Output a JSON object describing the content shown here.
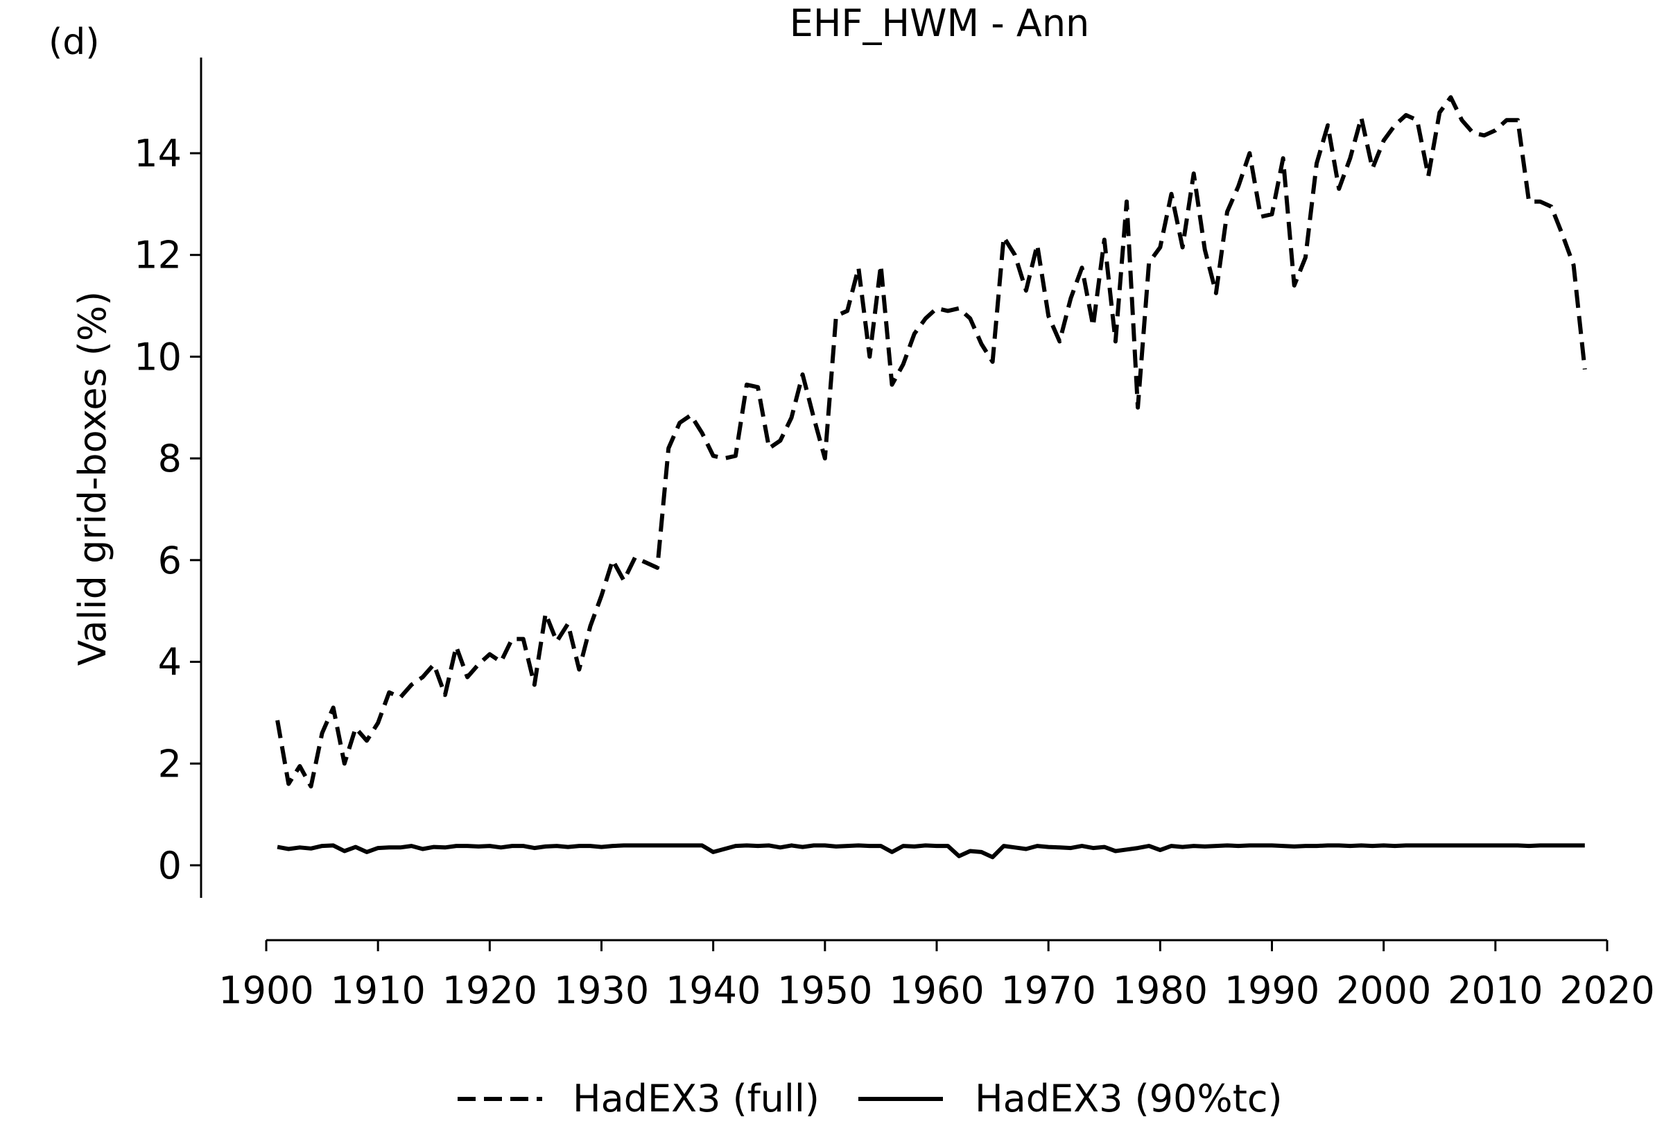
{
  "chart_data": {
    "type": "line",
    "panel_label": "(d)",
    "title": "EHF_HWM - Ann",
    "xlabel": "",
    "ylabel": "Valid grid-boxes (%)",
    "xlim": [
      1900,
      2020
    ],
    "ylim": [
      -0.6,
      15.8
    ],
    "xticks": [
      1900,
      1910,
      1920,
      1930,
      1940,
      1950,
      1960,
      1970,
      1980,
      1990,
      2000,
      2010,
      2020
    ],
    "yticks": [
      0,
      2,
      4,
      6,
      8,
      10,
      12,
      14
    ],
    "grid": false,
    "legend_position": "bottom-center",
    "x": [
      1901,
      1902,
      1903,
      1904,
      1905,
      1906,
      1907,
      1908,
      1909,
      1910,
      1911,
      1912,
      1913,
      1914,
      1915,
      1916,
      1917,
      1918,
      1919,
      1920,
      1921,
      1922,
      1923,
      1924,
      1925,
      1926,
      1927,
      1928,
      1929,
      1930,
      1931,
      1932,
      1933,
      1934,
      1935,
      1936,
      1937,
      1938,
      1939,
      1940,
      1941,
      1942,
      1943,
      1944,
      1945,
      1946,
      1947,
      1948,
      1949,
      1950,
      1951,
      1952,
      1953,
      1954,
      1955,
      1956,
      1957,
      1958,
      1959,
      1960,
      1961,
      1962,
      1963,
      1964,
      1965,
      1966,
      1967,
      1968,
      1969,
      1970,
      1971,
      1972,
      1973,
      1974,
      1975,
      1976,
      1977,
      1978,
      1979,
      1980,
      1981,
      1982,
      1983,
      1984,
      1985,
      1986,
      1987,
      1988,
      1989,
      1990,
      1991,
      1992,
      1993,
      1994,
      1995,
      1996,
      1997,
      1998,
      1999,
      2000,
      2001,
      2002,
      2003,
      2004,
      2005,
      2006,
      2007,
      2008,
      2009,
      2010,
      2011,
      2012,
      2013,
      2014,
      2015,
      2016,
      2017,
      2018
    ],
    "series": [
      {
        "name": "HadEX3 (full)",
        "style": "dashed",
        "color": "#000000",
        "values": [
          2.85,
          1.6,
          1.95,
          1.55,
          2.6,
          3.1,
          2.0,
          2.7,
          2.45,
          2.8,
          3.4,
          3.3,
          3.55,
          3.7,
          3.95,
          3.35,
          4.3,
          3.7,
          3.95,
          4.15,
          4.0,
          4.45,
          4.45,
          3.55,
          4.95,
          4.4,
          4.75,
          3.85,
          4.7,
          5.3,
          6.0,
          5.6,
          6.05,
          5.95,
          5.85,
          8.2,
          8.7,
          8.85,
          8.5,
          8.05,
          8.0,
          8.05,
          9.45,
          9.4,
          8.2,
          8.35,
          8.8,
          9.65,
          8.8,
          8.0,
          10.8,
          10.9,
          11.75,
          10.0,
          11.8,
          9.45,
          9.85,
          10.45,
          10.75,
          10.95,
          10.9,
          10.95,
          10.75,
          10.25,
          9.9,
          12.35,
          12.0,
          11.3,
          12.2,
          10.8,
          10.3,
          11.15,
          11.75,
          10.6,
          12.3,
          10.3,
          13.05,
          9.0,
          11.85,
          12.15,
          13.2,
          12.15,
          13.6,
          12.1,
          11.25,
          12.85,
          13.35,
          14.0,
          12.75,
          12.8,
          13.9,
          11.4,
          11.95,
          13.8,
          14.55,
          13.3,
          13.9,
          14.7,
          13.7,
          14.25,
          14.55,
          14.75,
          14.65,
          13.55,
          14.8,
          15.1,
          14.65,
          14.4,
          14.35,
          14.45,
          14.65,
          14.65,
          13.05,
          13.05,
          12.95,
          12.4,
          11.8,
          9.75
        ]
      },
      {
        "name": "HadEX3 (90%tc)",
        "style": "solid",
        "color": "#000000",
        "values": [
          0.36,
          0.32,
          0.35,
          0.33,
          0.38,
          0.39,
          0.28,
          0.36,
          0.26,
          0.34,
          0.35,
          0.35,
          0.38,
          0.32,
          0.36,
          0.35,
          0.38,
          0.38,
          0.37,
          0.38,
          0.35,
          0.38,
          0.38,
          0.34,
          0.37,
          0.38,
          0.36,
          0.38,
          0.38,
          0.36,
          0.38,
          0.39,
          0.39,
          0.39,
          0.39,
          0.39,
          0.39,
          0.39,
          0.39,
          0.26,
          0.32,
          0.38,
          0.39,
          0.38,
          0.39,
          0.35,
          0.39,
          0.36,
          0.39,
          0.39,
          0.37,
          0.38,
          0.39,
          0.38,
          0.38,
          0.26,
          0.38,
          0.37,
          0.39,
          0.38,
          0.38,
          0.18,
          0.28,
          0.26,
          0.16,
          0.38,
          0.35,
          0.32,
          0.38,
          0.36,
          0.35,
          0.34,
          0.38,
          0.34,
          0.36,
          0.28,
          0.31,
          0.34,
          0.38,
          0.3,
          0.38,
          0.36,
          0.38,
          0.37,
          0.38,
          0.39,
          0.38,
          0.39,
          0.39,
          0.39,
          0.38,
          0.37,
          0.38,
          0.38,
          0.39,
          0.39,
          0.38,
          0.39,
          0.38,
          0.39,
          0.38,
          0.39,
          0.39,
          0.39,
          0.39,
          0.39,
          0.39,
          0.39,
          0.39,
          0.39,
          0.39,
          0.39,
          0.38,
          0.39,
          0.39,
          0.39,
          0.39,
          0.39
        ]
      }
    ]
  }
}
